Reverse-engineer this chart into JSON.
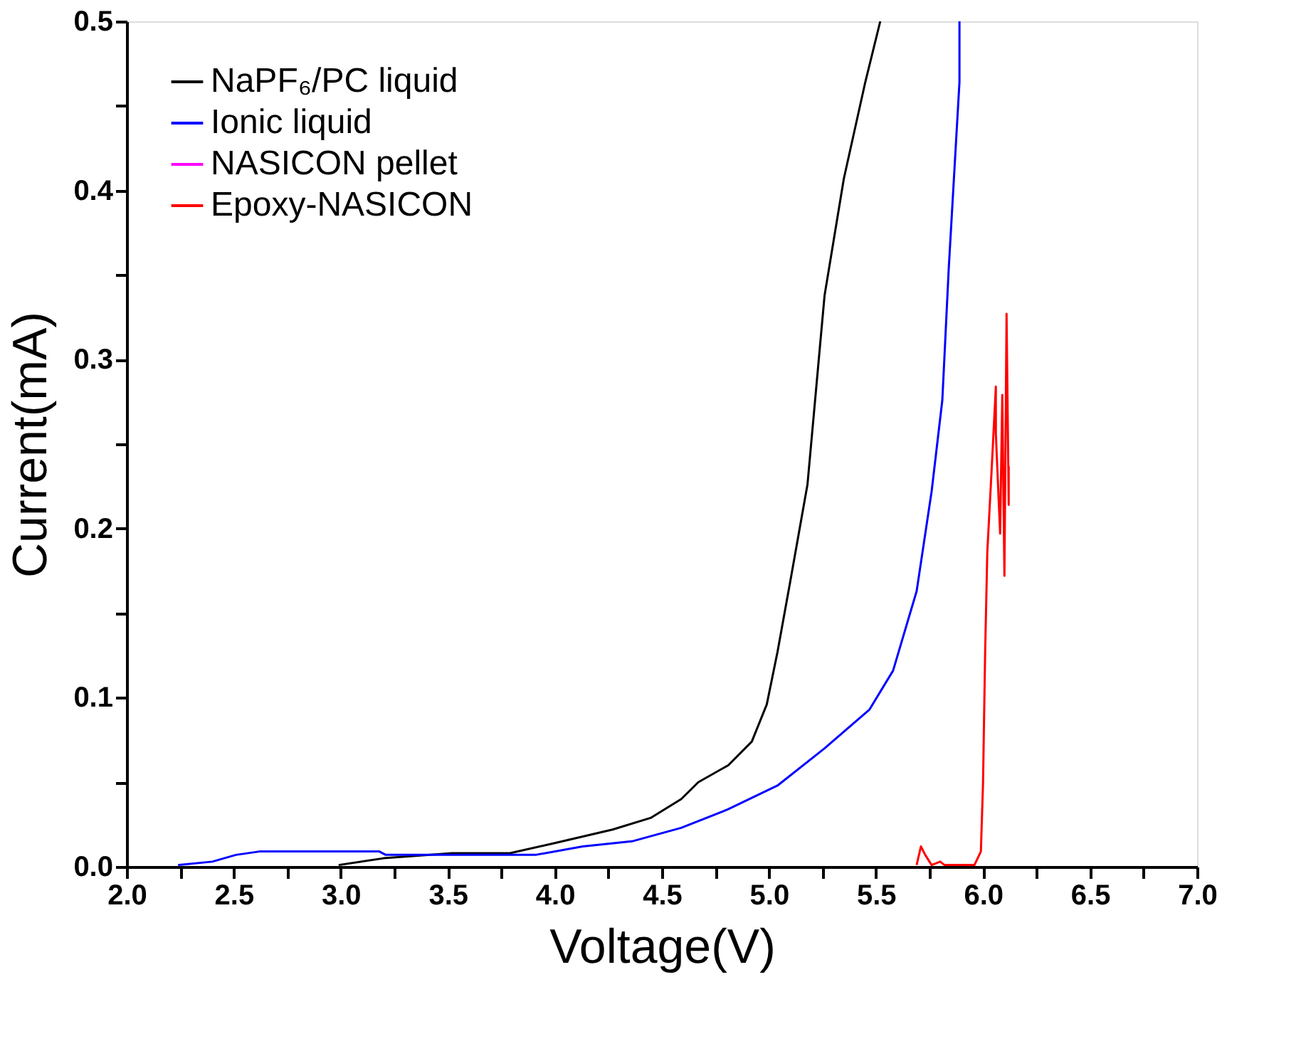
{
  "chart_data": {
    "type": "line",
    "xlabel": "Voltage(V)",
    "ylabel": "Current(mA)",
    "xlim": [
      2.0,
      7.0
    ],
    "ylim": [
      0.0,
      0.5
    ],
    "xticks": [
      {
        "value": 2.0,
        "label": "2.0"
      },
      {
        "value": 2.25,
        "label": null
      },
      {
        "value": 2.5,
        "label": "2.5"
      },
      {
        "value": 2.75,
        "label": null
      },
      {
        "value": 3.0,
        "label": "3.0"
      },
      {
        "value": 3.25,
        "label": null
      },
      {
        "value": 3.5,
        "label": "3.5"
      },
      {
        "value": 3.75,
        "label": null
      },
      {
        "value": 4.0,
        "label": "4.0"
      },
      {
        "value": 4.25,
        "label": null
      },
      {
        "value": 4.5,
        "label": "4.5"
      },
      {
        "value": 4.75,
        "label": null
      },
      {
        "value": 5.0,
        "label": "5.0"
      },
      {
        "value": 5.25,
        "label": null
      },
      {
        "value": 5.5,
        "label": "5.5"
      },
      {
        "value": 5.75,
        "label": null
      },
      {
        "value": 6.0,
        "label": "6.0"
      },
      {
        "value": 6.25,
        "label": null
      },
      {
        "value": 6.5,
        "label": "6.5"
      },
      {
        "value": 6.75,
        "label": null
      },
      {
        "value": 7.0,
        "label": "7.0"
      }
    ],
    "yticks": [
      {
        "value": 0.0,
        "label": "0.0"
      },
      {
        "value": 0.05,
        "label": null
      },
      {
        "value": 0.1,
        "label": "0.1"
      },
      {
        "value": 0.15,
        "label": null
      },
      {
        "value": 0.2,
        "label": "0.2"
      },
      {
        "value": 0.25,
        "label": null
      },
      {
        "value": 0.3,
        "label": "0.3"
      },
      {
        "value": 0.35,
        "label": null
      },
      {
        "value": 0.4,
        "label": "0.4"
      },
      {
        "value": 0.45,
        "label": null
      },
      {
        "value": 0.5,
        "label": "0.5"
      }
    ],
    "grid": false,
    "legend": "top left",
    "line_style": "solid",
    "marker": "none",
    "series": [
      {
        "name": "NaPF₆/PC liquid",
        "color": "#000000",
        "x": [
          2.99,
          3.2,
          3.52,
          3.79,
          4.0,
          4.27,
          4.45,
          4.59,
          4.67,
          4.81,
          4.92,
          4.99,
          5.04,
          5.1,
          5.18,
          5.26,
          5.35,
          5.45,
          5.52
        ],
        "values": [
          0.001,
          0.005,
          0.008,
          0.008,
          0.014,
          0.022,
          0.029,
          0.04,
          0.05,
          0.06,
          0.074,
          0.096,
          0.127,
          0.169,
          0.226,
          0.338,
          0.407,
          0.464,
          0.5
        ]
      },
      {
        "name": "Ionic liquid",
        "color": "#0000ff",
        "x": [
          2.24,
          2.4,
          2.51,
          2.62,
          3.18,
          3.21,
          3.91,
          4.13,
          4.36,
          4.59,
          4.81,
          5.04,
          5.26,
          5.47,
          5.58,
          5.69,
          5.76,
          5.81,
          5.84,
          5.89,
          5.89
        ],
        "values": [
          0.001,
          0.003,
          0.007,
          0.009,
          0.009,
          0.007,
          0.007,
          0.012,
          0.015,
          0.023,
          0.034,
          0.048,
          0.07,
          0.093,
          0.116,
          0.163,
          0.222,
          0.276,
          0.354,
          0.464,
          0.5
        ]
      },
      {
        "name": "NASICON pellet",
        "color": "#ff00ff"
      },
      {
        "name": "Epoxy-NASICON",
        "color": "#ff0000",
        "x": [
          5.69,
          5.71,
          5.73,
          5.76,
          5.8,
          5.82,
          5.96,
          5.99,
          6.0,
          6.01,
          6.02,
          6.04,
          6.06,
          6.06,
          6.08,
          6.09,
          6.1,
          6.11,
          6.12,
          6.12
        ],
        "values": [
          0.001,
          0.012,
          0.007,
          0.001,
          0.003,
          0.001,
          0.001,
          0.009,
          0.049,
          0.127,
          0.186,
          0.234,
          0.284,
          0.256,
          0.197,
          0.279,
          0.172,
          0.327,
          0.214,
          0.237
        ]
      }
    ]
  }
}
